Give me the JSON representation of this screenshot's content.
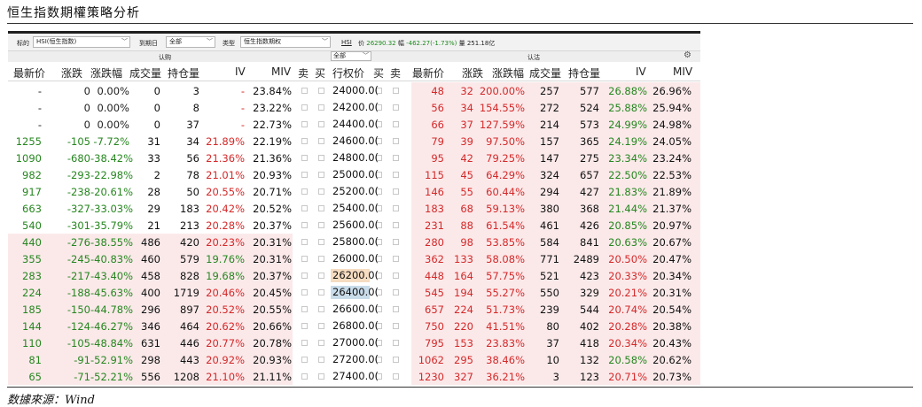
{
  "report_title": "恒生指数期權策略分析",
  "source": "数據來源：Wind",
  "filter": {
    "underlying_label": "标的",
    "underlying_value": "HSI(恒生指数)",
    "expiry_label": "到期日",
    "expiry_value": "全部",
    "type_label": "类型",
    "type_value": "恒生指数期权",
    "hsi_label": "HSI",
    "price_label": "价",
    "price_value": "26290.32",
    "change_label": "幅",
    "change_value": "-462.27(-1.73%)",
    "volume_label": "量",
    "volume_value": "251.18亿"
  },
  "side": {
    "call": "认购",
    "put": "认沽",
    "strike_filter": "全部"
  },
  "headers": {
    "call_last": "最新价",
    "call_chg": "涨跌",
    "call_pct": "涨跌幅",
    "call_vol": "成交量",
    "call_oi": "持仓量",
    "call_iv": "IV",
    "call_miv": "MIV",
    "sell": "卖",
    "buy": "买",
    "strike": "行权价",
    "buy2": "买",
    "sell2": "卖",
    "put_last": "最新价",
    "put_chg": "涨跌",
    "put_pct": "涨跌幅",
    "put_vol": "成交量",
    "put_oi": "持仓量",
    "put_iv": "IV",
    "put_miv": "MIV"
  },
  "rows": [
    {
      "c_last": "-",
      "c_chg": "0",
      "c_pct": "0.00%",
      "c_vol": "0",
      "c_oi": "3",
      "c_iv": "-",
      "c_miv": "23.84%",
      "strike": "24000.0(",
      "p_last": "48",
      "p_chg": "32",
      "p_pct": "200.00%",
      "p_vol": "257",
      "p_oi": "577",
      "p_iv": "26.88%",
      "p_miv": "26.96%"
    },
    {
      "c_last": "-",
      "c_chg": "0",
      "c_pct": "0.00%",
      "c_vol": "0",
      "c_oi": "8",
      "c_iv": "-",
      "c_miv": "23.22%",
      "strike": "24200.0(",
      "p_last": "56",
      "p_chg": "34",
      "p_pct": "154.55%",
      "p_vol": "272",
      "p_oi": "524",
      "p_iv": "25.88%",
      "p_miv": "25.94%"
    },
    {
      "c_last": "-",
      "c_chg": "0",
      "c_pct": "0.00%",
      "c_vol": "0",
      "c_oi": "37",
      "c_iv": "-",
      "c_miv": "22.73%",
      "strike": "24400.0(",
      "p_last": "66",
      "p_chg": "37",
      "p_pct": "127.59%",
      "p_vol": "214",
      "p_oi": "573",
      "p_iv": "24.99%",
      "p_miv": "24.98%"
    },
    {
      "c_last": "1255",
      "c_chg": "-105",
      "c_pct": "-7.72%",
      "c_vol": "31",
      "c_oi": "34",
      "c_iv": "21.89%",
      "c_miv": "22.19%",
      "strike": "24600.0(",
      "p_last": "79",
      "p_chg": "39",
      "p_pct": "97.50%",
      "p_vol": "157",
      "p_oi": "365",
      "p_iv": "24.19%",
      "p_miv": "24.05%"
    },
    {
      "c_last": "1090",
      "c_chg": "-680",
      "c_pct": "-38.42%",
      "c_vol": "33",
      "c_oi": "56",
      "c_iv": "21.36%",
      "c_miv": "21.36%",
      "strike": "24800.0(",
      "p_last": "95",
      "p_chg": "42",
      "p_pct": "79.25%",
      "p_vol": "147",
      "p_oi": "275",
      "p_iv": "23.34%",
      "p_miv": "23.24%"
    },
    {
      "c_last": "982",
      "c_chg": "-293",
      "c_pct": "-22.98%",
      "c_vol": "2",
      "c_oi": "78",
      "c_iv": "21.01%",
      "c_miv": "20.93%",
      "strike": "25000.0(",
      "p_last": "115",
      "p_chg": "45",
      "p_pct": "64.29%",
      "p_vol": "324",
      "p_oi": "657",
      "p_iv": "22.50%",
      "p_miv": "22.53%"
    },
    {
      "c_last": "917",
      "c_chg": "-238",
      "c_pct": "-20.61%",
      "c_vol": "28",
      "c_oi": "50",
      "c_iv": "20.55%",
      "c_miv": "20.71%",
      "strike": "25200.0(",
      "p_last": "146",
      "p_chg": "55",
      "p_pct": "60.44%",
      "p_vol": "294",
      "p_oi": "427",
      "p_iv": "21.83%",
      "p_miv": "21.89%"
    },
    {
      "c_last": "663",
      "c_chg": "-327",
      "c_pct": "-33.03%",
      "c_vol": "29",
      "c_oi": "183",
      "c_iv": "20.42%",
      "c_miv": "20.52%",
      "strike": "25400.0(",
      "p_last": "183",
      "p_chg": "68",
      "p_pct": "59.13%",
      "p_vol": "380",
      "p_oi": "368",
      "p_iv": "21.44%",
      "p_miv": "21.37%"
    },
    {
      "c_last": "540",
      "c_chg": "-301",
      "c_pct": "-35.79%",
      "c_vol": "21",
      "c_oi": "213",
      "c_iv": "20.28%",
      "c_miv": "20.37%",
      "strike": "25600.0(",
      "p_last": "231",
      "p_chg": "88",
      "p_pct": "61.54%",
      "p_vol": "461",
      "p_oi": "426",
      "p_iv": "20.85%",
      "p_miv": "20.97%"
    },
    {
      "c_last": "440",
      "c_chg": "-276",
      "c_pct": "-38.55%",
      "c_vol": "486",
      "c_oi": "420",
      "c_iv": "20.23%",
      "c_miv": "20.31%",
      "strike": "25800.0(",
      "p_last": "280",
      "p_chg": "98",
      "p_pct": "53.85%",
      "p_vol": "584",
      "p_oi": "841",
      "p_iv": "20.63%",
      "p_miv": "20.67%"
    },
    {
      "c_last": "355",
      "c_chg": "-245",
      "c_pct": "-40.83%",
      "c_vol": "460",
      "c_oi": "579",
      "c_iv": "19.76%",
      "c_miv": "20.31%",
      "strike": "26000.0(",
      "p_last": "362",
      "p_chg": "133",
      "p_pct": "58.08%",
      "p_vol": "771",
      "p_oi": "2489",
      "p_iv": "20.50%",
      "p_miv": "20.47%"
    },
    {
      "c_last": "283",
      "c_chg": "-217",
      "c_pct": "-43.40%",
      "c_vol": "458",
      "c_oi": "828",
      "c_iv": "19.68%",
      "c_miv": "20.37%",
      "strike": "26200.0(",
      "p_last": "448",
      "p_chg": "164",
      "p_pct": "57.75%",
      "p_vol": "521",
      "p_oi": "423",
      "p_iv": "20.33%",
      "p_miv": "20.34%"
    },
    {
      "c_last": "224",
      "c_chg": "-188",
      "c_pct": "-45.63%",
      "c_vol": "400",
      "c_oi": "1719",
      "c_iv": "20.46%",
      "c_miv": "20.45%",
      "strike": "26400.0(",
      "p_last": "545",
      "p_chg": "194",
      "p_pct": "55.27%",
      "p_vol": "550",
      "p_oi": "329",
      "p_iv": "20.21%",
      "p_miv": "20.31%"
    },
    {
      "c_last": "185",
      "c_chg": "-150",
      "c_pct": "-44.78%",
      "c_vol": "296",
      "c_oi": "897",
      "c_iv": "20.52%",
      "c_miv": "20.55%",
      "strike": "26600.0(",
      "p_last": "657",
      "p_chg": "224",
      "p_pct": "51.73%",
      "p_vol": "239",
      "p_oi": "544",
      "p_iv": "20.74%",
      "p_miv": "20.54%"
    },
    {
      "c_last": "144",
      "c_chg": "-124",
      "c_pct": "-46.27%",
      "c_vol": "346",
      "c_oi": "464",
      "c_iv": "20.62%",
      "c_miv": "20.66%",
      "strike": "26800.0(",
      "p_last": "750",
      "p_chg": "220",
      "p_pct": "41.51%",
      "p_vol": "80",
      "p_oi": "402",
      "p_iv": "20.28%",
      "p_miv": "20.38%"
    },
    {
      "c_last": "110",
      "c_chg": "-105",
      "c_pct": "-48.84%",
      "c_vol": "631",
      "c_oi": "446",
      "c_iv": "20.77%",
      "c_miv": "20.78%",
      "strike": "27000.0(",
      "p_last": "795",
      "p_chg": "153",
      "p_pct": "23.83%",
      "p_vol": "37",
      "p_oi": "418",
      "p_iv": "20.34%",
      "p_miv": "20.43%"
    },
    {
      "c_last": "81",
      "c_chg": "-91",
      "c_pct": "-52.91%",
      "c_vol": "298",
      "c_oi": "443",
      "c_iv": "20.92%",
      "c_miv": "20.93%",
      "strike": "27200.0(",
      "p_last": "1062",
      "p_chg": "295",
      "p_pct": "38.46%",
      "p_vol": "10",
      "p_oi": "132",
      "p_iv": "20.58%",
      "p_miv": "20.62%"
    },
    {
      "c_last": "65",
      "c_chg": "-71",
      "c_pct": "-52.21%",
      "c_vol": "556",
      "c_oi": "1208",
      "c_iv": "21.10%",
      "c_miv": "21.11%",
      "strike": "27400.0(",
      "p_last": "1230",
      "p_chg": "327",
      "p_pct": "36.21%",
      "p_vol": "3",
      "p_oi": "123",
      "p_iv": "20.71%",
      "p_miv": "20.73%"
    }
  ],
  "colors": {
    "up": "#d42929",
    "down": "#26861f",
    "itm_bg": "#fbe9ea",
    "strike_hl_1": "#f6dcc0",
    "strike_hl_2": "#c9dcea"
  }
}
